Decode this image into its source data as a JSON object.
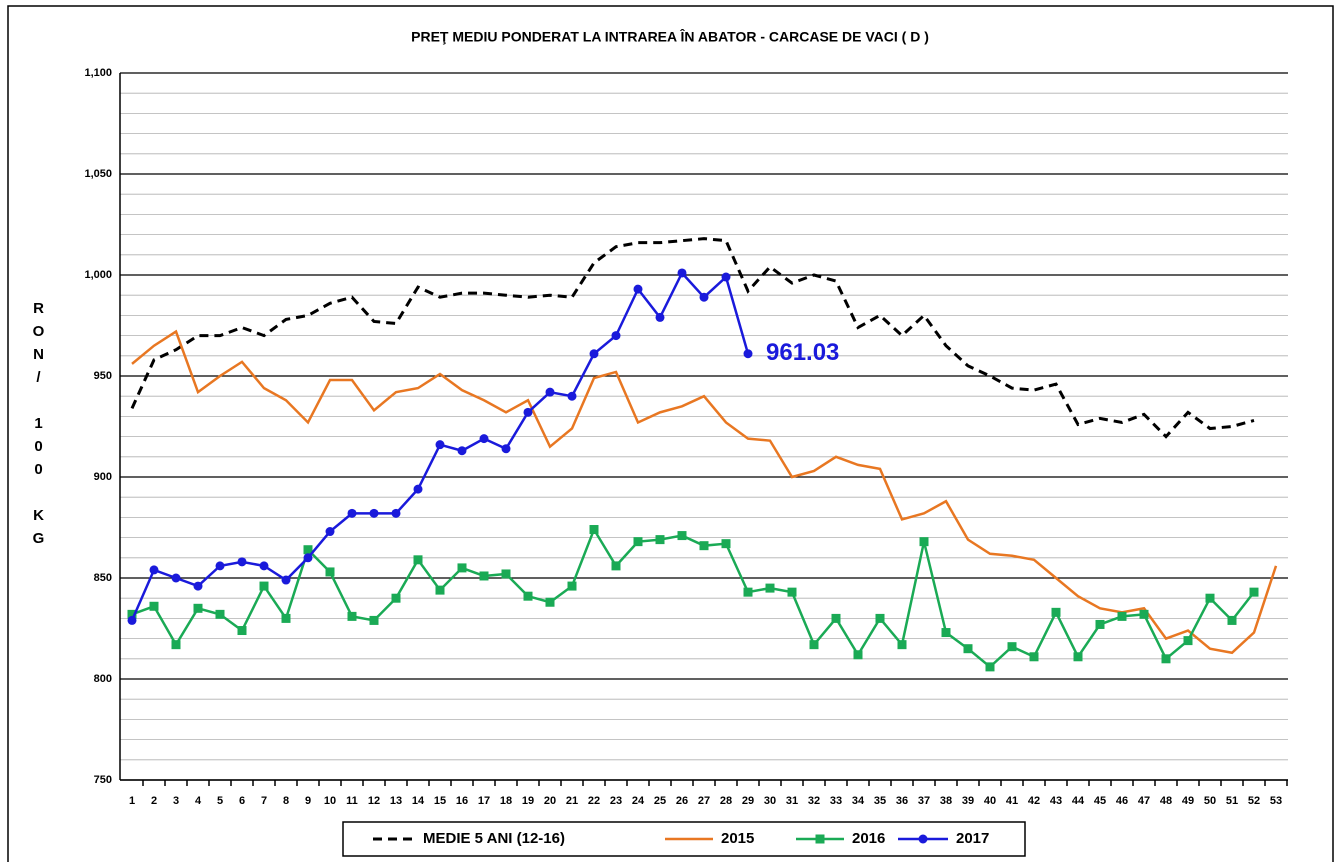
{
  "chart_data": {
    "type": "line",
    "title": "PREŢ MEDIU PONDERAT LA INTRAREA ÎN ABATOR - CARCASE DE VACI ( D )",
    "y_label": "RON/ 100 KG",
    "categories": [
      "1",
      "2",
      "3",
      "4",
      "5",
      "6",
      "7",
      "8",
      "9",
      "10",
      "11",
      "12",
      "13",
      "14",
      "15",
      "16",
      "17",
      "18",
      "19",
      "20",
      "21",
      "22",
      "23",
      "24",
      "25",
      "26",
      "27",
      "28",
      "29",
      "30",
      "31",
      "32",
      "33",
      "34",
      "35",
      "36",
      "37",
      "38",
      "39",
      "40",
      "41",
      "42",
      "43",
      "44",
      "45",
      "46",
      "47",
      "48",
      "49",
      "50",
      "51",
      "52",
      "53"
    ],
    "ylim": [
      750,
      1100
    ],
    "yticks": [
      750,
      800,
      850,
      900,
      950,
      {
        "value": 1000,
        "label": "1,000"
      },
      {
        "value": 1050,
        "label": "1,050"
      },
      {
        "value": 1100,
        "label": "1,100"
      }
    ],
    "grid": true,
    "minor_grid": true,
    "legend": "bottom",
    "series": [
      {
        "name": "MEDIE 5 ANI (12-16)",
        "color": "#000000",
        "dash": true,
        "marker": "none",
        "values": [
          934,
          958,
          963,
          970,
          970,
          974,
          970,
          978,
          980,
          986,
          989,
          977,
          976,
          994,
          989,
          991,
          991,
          990,
          989,
          990,
          989,
          1006,
          1014,
          1016,
          1016,
          1017,
          1018,
          1017,
          992,
          1004,
          996,
          1000,
          997,
          974,
          980,
          970,
          980,
          965,
          955,
          950,
          944,
          943,
          946,
          926,
          929,
          927,
          931,
          920,
          932,
          924,
          925,
          928,
          null
        ]
      },
      {
        "name": "2015",
        "color": "#e87722",
        "dash": false,
        "marker": "none",
        "values": [
          956,
          965,
          972,
          942,
          950,
          957,
          944,
          938,
          927,
          948,
          948,
          933,
          942,
          944,
          951,
          943,
          938,
          932,
          938,
          915,
          924,
          949,
          952,
          927,
          932,
          935,
          940,
          927,
          919,
          918,
          900,
          903,
          910,
          906,
          904,
          879,
          882,
          888,
          869,
          862,
          861,
          859,
          850,
          841,
          835,
          833,
          835,
          820,
          824,
          815,
          813,
          823,
          856
        ]
      },
      {
        "name": "2016",
        "color": "#1aaa55",
        "dash": false,
        "marker": "square",
        "values": [
          832,
          836,
          817,
          835,
          832,
          824,
          846,
          830,
          864,
          853,
          831,
          829,
          840,
          859,
          844,
          855,
          851,
          852,
          841,
          838,
          846,
          874,
          856,
          868,
          869,
          871,
          866,
          867,
          843,
          845,
          843,
          817,
          830,
          812,
          830,
          817,
          868,
          823,
          815,
          806,
          816,
          811,
          833,
          811,
          827,
          831,
          832,
          810,
          819,
          840,
          829,
          843,
          null
        ]
      },
      {
        "name": "2017",
        "color": "#1a1adb",
        "dash": false,
        "marker": "circle",
        "label_last": true,
        "values": [
          829,
          854,
          850,
          846,
          856,
          858,
          856,
          849,
          860,
          873,
          882,
          882,
          882,
          894,
          916,
          913,
          919,
          914,
          932,
          942,
          940,
          961,
          970,
          993,
          979,
          1001,
          989,
          999,
          961.03,
          null,
          null,
          null,
          null,
          null,
          null,
          null,
          null,
          null,
          null,
          null,
          null,
          null,
          null,
          null,
          null,
          null,
          null,
          null,
          null,
          null,
          null,
          null,
          null
        ]
      }
    ]
  }
}
